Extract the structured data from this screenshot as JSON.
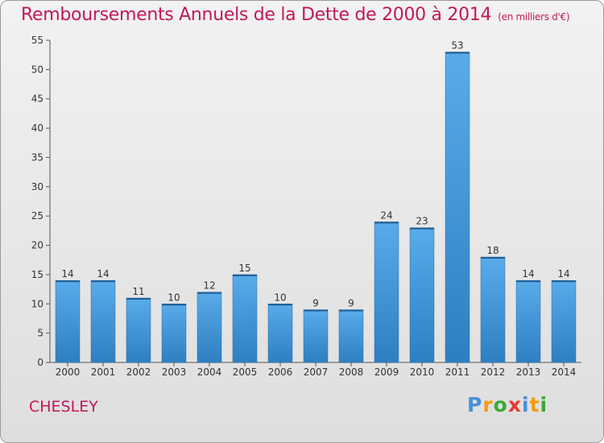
{
  "header": {
    "title": "Remboursements Annuels de la Dette de 2000 à 2014",
    "unit": "(en milliers d'€)"
  },
  "footer": {
    "place": "CHESLEY",
    "brand_letters": [
      "P",
      "r",
      "o",
      "x",
      "i",
      "t",
      "i"
    ]
  },
  "colors": {
    "title": "#c2185b",
    "bar_light": "#5aabea",
    "bar_dark": "#2e7fc1",
    "brand": [
      "#4a90d9",
      "#f39c12",
      "#3aa935",
      "#e53935",
      "#4a90d9",
      "#f39c12",
      "#3aa935"
    ]
  },
  "chart_data": {
    "type": "bar",
    "categories": [
      "2000",
      "2001",
      "2002",
      "2003",
      "2004",
      "2005",
      "2006",
      "2007",
      "2008",
      "2009",
      "2010",
      "2011",
      "2012",
      "2013",
      "2014"
    ],
    "values": [
      14,
      14,
      11,
      10,
      12,
      15,
      10,
      9,
      9,
      24,
      23,
      53,
      18,
      14,
      14
    ],
    "ylim": [
      0,
      55
    ],
    "yticks": [
      0,
      5,
      10,
      15,
      20,
      25,
      30,
      35,
      40,
      45,
      50,
      55
    ],
    "grid": false,
    "data_labels": true
  }
}
